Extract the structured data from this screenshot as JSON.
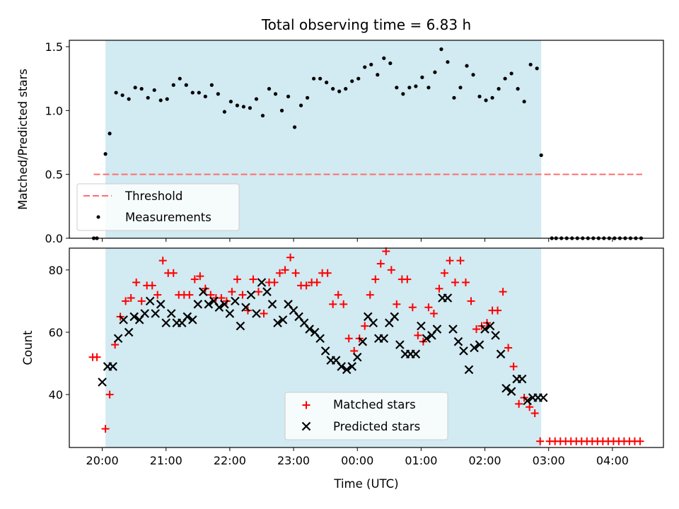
{
  "chart_data": [
    {
      "type": "scatter",
      "title": "Total observing time = 6.83 h",
      "ylabel": "Matched/Predicted stars",
      "xlabel": "",
      "xlim": [
        "19:29",
        "04:48"
      ],
      "ylim": [
        0,
        1.55
      ],
      "yticks": [
        "0.0",
        "0.5",
        "1.0",
        "1.5"
      ],
      "shaded_interval": [
        "20:03",
        "02:53"
      ],
      "legend": "lower-left",
      "threshold": {
        "name": "Threshold",
        "value": 0.5,
        "color": "#ff6e6e",
        "style": "dashed"
      },
      "series": [
        {
          "name": "Measurements",
          "color": "#000000",
          "marker": "dot",
          "x": [
            "19:52",
            "19:55",
            "20:03",
            "20:07",
            "20:13",
            "20:19",
            "20:25",
            "20:31",
            "20:37",
            "20:43",
            "20:49",
            "20:55",
            "21:01",
            "21:07",
            "21:13",
            "21:19",
            "21:25",
            "21:31",
            "21:37",
            "21:43",
            "21:49",
            "21:55",
            "22:01",
            "22:07",
            "22:13",
            "22:19",
            "22:25",
            "22:31",
            "22:37",
            "22:43",
            "22:49",
            "22:55",
            "23:01",
            "23:07",
            "23:13",
            "23:19",
            "23:25",
            "23:31",
            "23:37",
            "23:43",
            "23:49",
            "23:55",
            "00:01",
            "00:07",
            "00:13",
            "00:19",
            "00:25",
            "00:31",
            "00:37",
            "00:43",
            "00:49",
            "00:55",
            "01:01",
            "01:07",
            "01:13",
            "01:19",
            "01:25",
            "01:31",
            "01:37",
            "01:43",
            "01:49",
            "01:55",
            "02:01",
            "02:07",
            "02:13",
            "02:19",
            "02:25",
            "02:31",
            "02:37",
            "02:43",
            "02:49",
            "02:53",
            "03:03",
            "03:07",
            "03:12",
            "03:17",
            "03:22",
            "03:27",
            "03:32",
            "03:37",
            "03:42",
            "03:47",
            "03:52",
            "03:57",
            "04:02",
            "04:07",
            "04:12",
            "04:17",
            "04:22",
            "04:27"
          ],
          "y": [
            0.0,
            0.0,
            0.66,
            0.82,
            1.14,
            1.12,
            1.09,
            1.18,
            1.17,
            1.1,
            1.16,
            1.08,
            1.09,
            1.2,
            1.25,
            1.2,
            1.14,
            1.14,
            1.11,
            1.2,
            1.13,
            0.99,
            1.07,
            1.04,
            1.03,
            1.02,
            1.09,
            0.96,
            1.17,
            1.13,
            1.0,
            1.11,
            0.87,
            1.04,
            1.1,
            1.25,
            1.25,
            1.22,
            1.17,
            1.15,
            1.17,
            1.23,
            1.25,
            1.34,
            1.36,
            1.28,
            1.41,
            1.37,
            1.18,
            1.13,
            1.18,
            1.19,
            1.26,
            1.18,
            1.3,
            1.48,
            1.38,
            1.1,
            1.18,
            1.35,
            1.28,
            1.11,
            1.08,
            1.1,
            1.17,
            1.25,
            1.29,
            1.17,
            1.07,
            1.36,
            1.33,
            0.65,
            0.0,
            0.0,
            0.0,
            0.0,
            0.0,
            0.0,
            0.0,
            0.0,
            0.0,
            0.0,
            0.0,
            0.0,
            0.0,
            0.0,
            0.0,
            0.0,
            0.0,
            0.0
          ]
        }
      ]
    },
    {
      "type": "scatter",
      "title": "",
      "ylabel": "Count",
      "xlabel": "Time (UTC)",
      "xlim": [
        "19:29",
        "04:48"
      ],
      "ylim": [
        23,
        87
      ],
      "yticks": [
        "40",
        "60",
        "80"
      ],
      "xticks": [
        "20:00",
        "21:00",
        "22:00",
        "23:00",
        "00:00",
        "01:00",
        "02:00",
        "03:00",
        "04:00"
      ],
      "shaded_interval": [
        "20:03",
        "02:53"
      ],
      "legend": "lower-center",
      "series": [
        {
          "name": "Matched stars",
          "color": "#ff0000",
          "marker": "plus",
          "x": [
            "19:51",
            "19:55",
            "20:03",
            "20:07",
            "20:12",
            "20:17",
            "20:22",
            "20:27",
            "20:32",
            "20:37",
            "20:42",
            "20:47",
            "20:52",
            "20:57",
            "21:02",
            "21:07",
            "21:12",
            "21:17",
            "21:22",
            "21:27",
            "21:32",
            "21:37",
            "21:42",
            "21:47",
            "21:52",
            "21:57",
            "22:02",
            "22:07",
            "22:12",
            "22:17",
            "22:22",
            "22:27",
            "22:32",
            "22:37",
            "22:42",
            "22:47",
            "22:52",
            "22:57",
            "23:02",
            "23:07",
            "23:12",
            "23:17",
            "23:22",
            "23:27",
            "23:32",
            "23:37",
            "23:42",
            "23:47",
            "23:52",
            "23:57",
            "00:02",
            "00:07",
            "00:12",
            "00:17",
            "00:22",
            "00:27",
            "00:32",
            "00:37",
            "00:42",
            "00:47",
            "00:52",
            "00:57",
            "01:02",
            "01:07",
            "01:12",
            "01:17",
            "01:22",
            "01:27",
            "01:32",
            "01:37",
            "01:42",
            "01:47",
            "01:52",
            "01:57",
            "02:02",
            "02:07",
            "02:12",
            "02:17",
            "02:22",
            "02:27",
            "02:32",
            "02:37",
            "02:42",
            "02:47",
            "02:52",
            "03:01",
            "03:06",
            "03:11",
            "03:16",
            "03:21",
            "03:26",
            "03:31",
            "03:36",
            "03:41",
            "03:46",
            "03:51",
            "03:56",
            "04:01",
            "04:06",
            "04:11",
            "04:16",
            "04:21",
            "04:26"
          ],
          "y": [
            52,
            52,
            29,
            40,
            56,
            65,
            70,
            71,
            76,
            70,
            75,
            75,
            72,
            83,
            79,
            79,
            72,
            72,
            72,
            77,
            78,
            74,
            72,
            71,
            71,
            70,
            73,
            77,
            72,
            67,
            77,
            73,
            66,
            76,
            76,
            79,
            80,
            84,
            79,
            75,
            75,
            76,
            76,
            79,
            79,
            69,
            72,
            69,
            58,
            54,
            58,
            62,
            72,
            77,
            82,
            86,
            80,
            69,
            77,
            77,
            68,
            59,
            57,
            68,
            66,
            74,
            79,
            83,
            76,
            83,
            76,
            70,
            61,
            62,
            63,
            67,
            67,
            73,
            55,
            49,
            37,
            39,
            36,
            34,
            25,
            25,
            25,
            25,
            25,
            25,
            25,
            25,
            25,
            25,
            25,
            25,
            25,
            25,
            25,
            25,
            25,
            25,
            25
          ]
        },
        {
          "name": "Predicted stars",
          "color": "#000000",
          "marker": "x",
          "x": [
            "20:00",
            "20:05",
            "20:10",
            "20:15",
            "20:20",
            "20:25",
            "20:30",
            "20:35",
            "20:40",
            "20:45",
            "20:50",
            "20:55",
            "21:00",
            "21:05",
            "21:10",
            "21:15",
            "21:20",
            "21:25",
            "21:30",
            "21:35",
            "21:40",
            "21:45",
            "21:50",
            "21:55",
            "22:00",
            "22:05",
            "22:10",
            "22:15",
            "22:20",
            "22:25",
            "22:30",
            "22:35",
            "22:40",
            "22:45",
            "22:50",
            "22:55",
            "23:00",
            "23:05",
            "23:10",
            "23:15",
            "23:20",
            "23:25",
            "23:30",
            "23:35",
            "23:40",
            "23:45",
            "23:50",
            "23:55",
            "00:00",
            "00:05",
            "00:10",
            "00:15",
            "00:20",
            "00:25",
            "00:30",
            "00:35",
            "00:40",
            "00:45",
            "00:50",
            "00:55",
            "01:00",
            "01:05",
            "01:10",
            "01:15",
            "01:20",
            "01:25",
            "01:30",
            "01:35",
            "01:40",
            "01:45",
            "01:50",
            "01:55",
            "02:00",
            "02:05",
            "02:10",
            "02:15",
            "02:20",
            "02:25",
            "02:30",
            "02:35",
            "02:40",
            "02:45",
            "02:50",
            "02:55"
          ],
          "y": [
            44,
            49,
            49,
            58,
            64,
            60,
            65,
            64,
            66,
            70,
            66,
            69,
            63,
            66,
            63,
            63,
            65,
            64,
            69,
            73,
            69,
            70,
            68,
            69,
            66,
            70,
            62,
            68,
            72,
            66,
            76,
            73,
            69,
            63,
            64,
            69,
            67,
            65,
            63,
            61,
            60,
            58,
            54,
            51,
            51,
            49,
            48,
            49,
            52,
            57,
            65,
            63,
            58,
            58,
            63,
            65,
            56,
            53,
            53,
            53,
            62,
            58,
            59,
            61,
            71,
            71,
            61,
            57,
            54,
            48,
            55,
            56,
            61,
            62,
            59,
            53,
            42,
            41,
            45,
            45,
            38,
            39,
            39,
            39
          ]
        }
      ]
    }
  ]
}
